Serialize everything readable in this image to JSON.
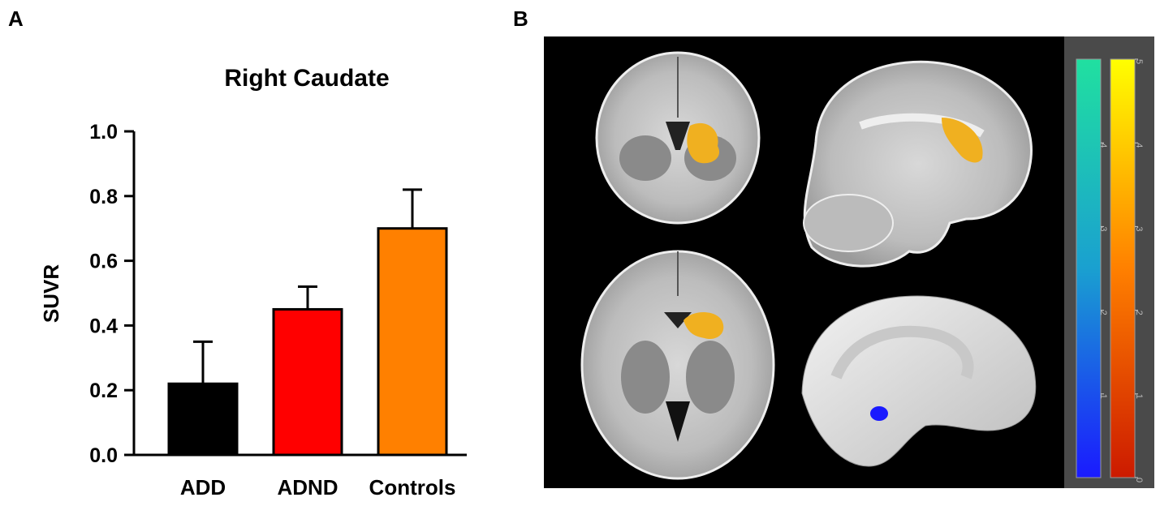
{
  "panel_labels": {
    "a": "A",
    "b": "B"
  },
  "chart_data": {
    "type": "bar",
    "title": "Right Caudate",
    "xlabel": "",
    "ylabel": "SUVR",
    "categories": [
      "ADD",
      "ADND",
      "Controls"
    ],
    "values": [
      0.22,
      0.45,
      0.7
    ],
    "errors": [
      0.13,
      0.07,
      0.12
    ],
    "colors": [
      "#000000",
      "#ff0000",
      "#ff8000"
    ],
    "ylim": [
      0,
      1.0
    ],
    "yticks": [
      "0.0",
      "0.2",
      "0.4",
      "0.6",
      "0.8",
      "1.0"
    ],
    "grid": false
  },
  "brain_figure": {
    "views": [
      "coronal-slice",
      "sagittal-slice",
      "axial-slice",
      "medial-surface"
    ],
    "colorbar_left": {
      "colors": [
        "#1a1aff",
        "#1aa0d0",
        "#20e0a0"
      ],
      "ticks": [
        "1",
        "2",
        "3",
        "4"
      ]
    },
    "colorbar_right": {
      "colors": [
        "#cc1a00",
        "#ff8000",
        "#ffff00"
      ],
      "ticks": [
        "0",
        "1",
        "2",
        "3",
        "4",
        "5"
      ]
    }
  }
}
